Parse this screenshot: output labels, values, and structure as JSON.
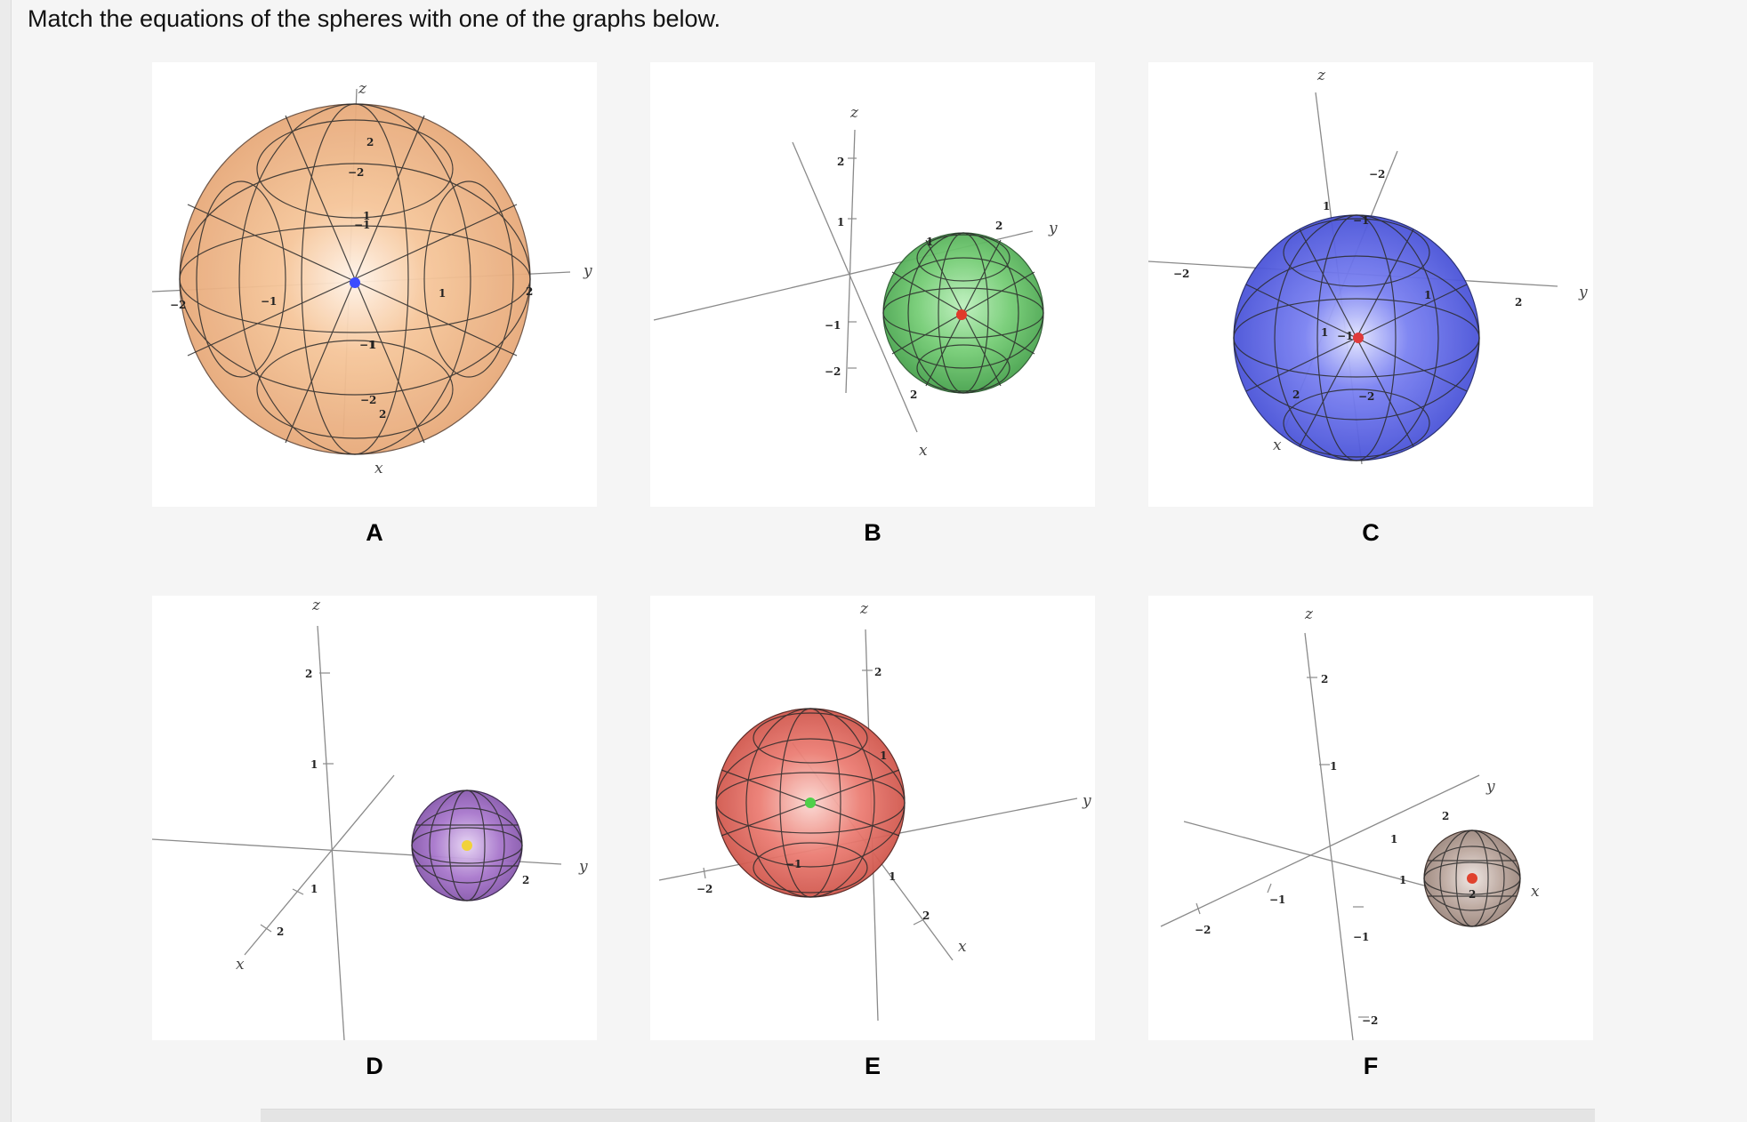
{
  "prompt": "Match the equations of the spheres with one of the graphs below.",
  "panels": [
    {
      "letter": "A",
      "axis_labels": {
        "x": "x",
        "y": "y",
        "z": "z"
      },
      "ticks": [
        "−2",
        "−2",
        "−1",
        "1",
        "−1",
        "1",
        "2",
        "−1",
        "1",
        "−2",
        "2",
        "2"
      ],
      "colors": {
        "sphere": "#f0b07a",
        "center": "#3b4cff"
      }
    },
    {
      "letter": "B",
      "axis_labels": {
        "x": "x",
        "y": "y",
        "z": "z"
      },
      "ticks": [
        "2",
        "1",
        "−1",
        "−2",
        "1",
        "2",
        "2"
      ],
      "colors": {
        "sphere": "#62c46a",
        "center": "#e03a2a"
      }
    },
    {
      "letter": "C",
      "axis_labels": {
        "x": "x",
        "y": "y",
        "z": "z"
      },
      "ticks": [
        "−2",
        "1",
        "−2",
        "−1",
        "1",
        "2",
        "1",
        "−1",
        "2",
        "−2"
      ],
      "colors": {
        "sphere": "#5a63e8",
        "center": "#e03a3a"
      }
    },
    {
      "letter": "D",
      "axis_labels": {
        "x": "x",
        "y": "y",
        "z": "z"
      },
      "ticks": [
        "2",
        "1",
        "1",
        "2",
        "2"
      ],
      "colors": {
        "sphere": "#a070c8",
        "center": "#f1d23a"
      }
    },
    {
      "letter": "E",
      "axis_labels": {
        "x": "x",
        "y": "y",
        "z": "z"
      },
      "ticks": [
        "2",
        "1",
        "−2",
        "−1",
        "1",
        "2"
      ],
      "colors": {
        "sphere": "#e8706a",
        "center": "#4fd04a"
      }
    },
    {
      "letter": "F",
      "axis_labels": {
        "x": "x",
        "y": "y",
        "z": "z"
      },
      "ticks": [
        "2",
        "1",
        "2",
        "1",
        "1",
        "−1",
        "−2",
        "−1",
        "−2",
        "2"
      ],
      "colors": {
        "sphere": "#b9a59c",
        "center": "#e0422e"
      }
    }
  ]
}
